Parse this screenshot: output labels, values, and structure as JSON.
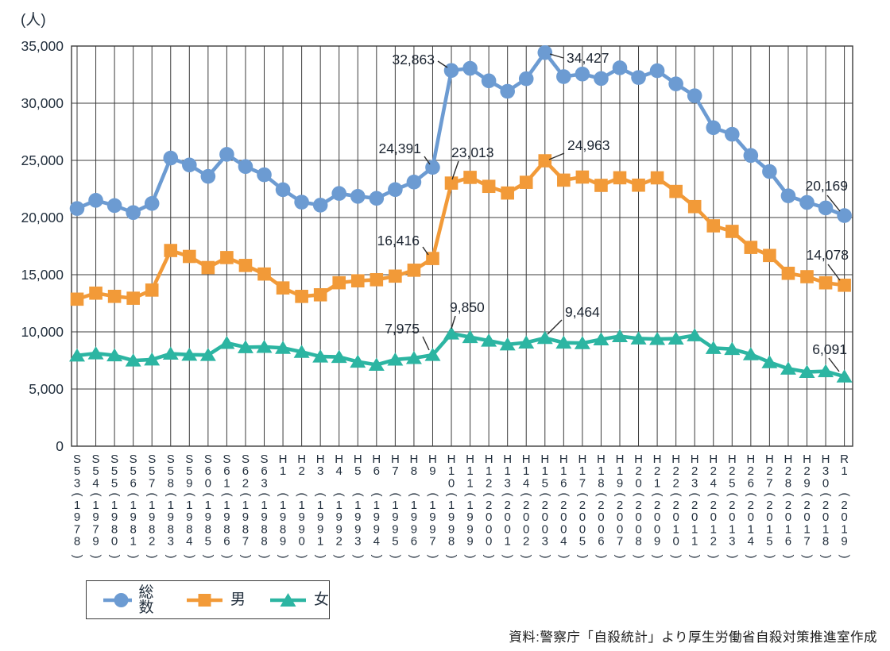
{
  "chart_data": {
    "type": "line",
    "unit_label": "(人)",
    "ylim": [
      0,
      35000
    ],
    "ytick_step": 5000,
    "grid": true,
    "era_labels": [
      "S53",
      "S54",
      "S55",
      "S56",
      "S57",
      "S58",
      "S59",
      "S60",
      "S61",
      "S62",
      "S63",
      "H1",
      "H2",
      "H3",
      "H4",
      "H5",
      "H6",
      "H7",
      "H8",
      "H9",
      "H10",
      "H11",
      "H12",
      "H13",
      "H14",
      "H15",
      "H16",
      "H17",
      "H18",
      "H19",
      "H20",
      "H21",
      "H22",
      "H23",
      "H24",
      "H25",
      "H26",
      "H27",
      "H28",
      "H29",
      "H30",
      "R1"
    ],
    "years": [
      1978,
      1979,
      1980,
      1981,
      1982,
      1983,
      1984,
      1985,
      1986,
      1987,
      1988,
      1989,
      1990,
      1991,
      1992,
      1993,
      1994,
      1995,
      1996,
      1997,
      1998,
      1999,
      2000,
      2001,
      2002,
      2003,
      2004,
      2005,
      2006,
      2007,
      2008,
      2009,
      2010,
      2011,
      2012,
      2013,
      2014,
      2015,
      2016,
      2017,
      2018,
      2019
    ],
    "series": [
      {
        "id": "total",
        "name": "総数",
        "marker": "circle",
        "color": "#6C9BD2",
        "values": [
          20788,
          21503,
          21048,
          20434,
          21228,
          25202,
          24596,
          23599,
          25524,
          24460,
          23742,
          22436,
          21346,
          21084,
          22104,
          21851,
          21679,
          22445,
          23104,
          24391,
          32863,
          33048,
          31957,
          31042,
          32143,
          34427,
          32325,
          32552,
          32155,
          33093,
          32249,
          32845,
          31690,
          30651,
          27858,
          27283,
          25427,
          24025,
          21897,
          21321,
          20840,
          20169
        ]
      },
      {
        "id": "male",
        "name": "男",
        "marker": "square",
        "color": "#F29A38",
        "values": [
          12859,
          13386,
          13105,
          12942,
          13654,
          17116,
          16597,
          15624,
          16499,
          15809,
          15059,
          13842,
          13102,
          13242,
          14296,
          14465,
          14560,
          14874,
          15393,
          16416,
          23013,
          23512,
          22727,
          22144,
          23080,
          24963,
          23272,
          23540,
          22813,
          23478,
          22831,
          23472,
          22283,
          20955,
          19273,
          18787,
          17386,
          16681,
          15121,
          14826,
          14290,
          14078
        ]
      },
      {
        "id": "female",
        "name": "女",
        "marker": "triangle",
        "color": "#2CB5A2",
        "values": [
          7929,
          8117,
          7943,
          7492,
          7574,
          8086,
          7999,
          7975,
          9025,
          8651,
          8683,
          8594,
          8244,
          7842,
          7808,
          7386,
          7119,
          7571,
          7711,
          7975,
          9850,
          9536,
          9230,
          8898,
          9063,
          9464,
          9053,
          9012,
          9342,
          9615,
          9418,
          9373,
          9407,
          9696,
          8585,
          8496,
          8041,
          7344,
          6776,
          6495,
          6550,
          6091
        ]
      }
    ],
    "annotations": [
      {
        "series": "total",
        "year": 1998,
        "label": "32,863"
      },
      {
        "series": "total",
        "year": 1997,
        "label": "24,391"
      },
      {
        "series": "total",
        "year": 2003,
        "label": "34,427"
      },
      {
        "series": "total",
        "year": 2019,
        "label": "20,169"
      },
      {
        "series": "male",
        "year": 1998,
        "label": "23,013"
      },
      {
        "series": "male",
        "year": 1997,
        "label": "16,416"
      },
      {
        "series": "male",
        "year": 2003,
        "label": "24,963"
      },
      {
        "series": "male",
        "year": 2019,
        "label": "14,078"
      },
      {
        "series": "female",
        "year": 1997,
        "label": "7,975"
      },
      {
        "series": "female",
        "year": 1998,
        "label": "9,850"
      },
      {
        "series": "female",
        "year": 2003,
        "label": "9,464"
      },
      {
        "series": "female",
        "year": 2019,
        "label": "6,091"
      }
    ],
    "legend_position": "bottom-left",
    "source": "資料:警察庁「自殺統計」より厚生労働省自殺対策推進室作成"
  },
  "colors": {
    "grid": "#3c3c3c",
    "axis_text": "#222f3d",
    "annotation_text": "#1b2430",
    "callout_line": "#2b2b2b"
  }
}
